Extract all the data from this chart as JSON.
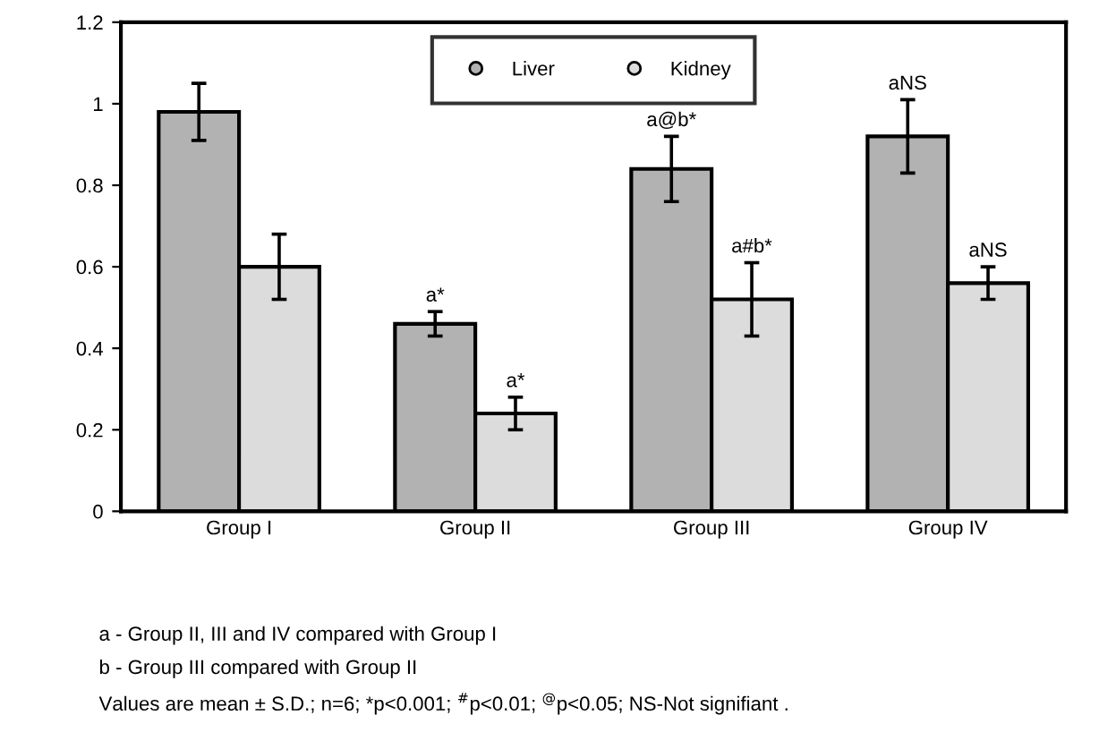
{
  "chart_data": {
    "type": "bar",
    "categories": [
      "Group I",
      "Group II",
      "Group III",
      "Group IV"
    ],
    "series": [
      {
        "name": "Liver",
        "color": "#b2b2b2",
        "values": [
          0.98,
          0.46,
          0.84,
          0.92
        ],
        "errors": [
          0.07,
          0.03,
          0.08,
          0.09
        ],
        "value_labels": [
          null,
          "a*",
          "a@b*",
          "aNS"
        ]
      },
      {
        "name": "Kidney",
        "color": "#dcdcdc",
        "values": [
          0.6,
          0.24,
          0.52,
          0.56
        ],
        "errors": [
          0.08,
          0.04,
          0.09,
          0.04
        ],
        "value_labels": [
          null,
          "a*",
          "a#b*",
          "aNS"
        ]
      }
    ],
    "ylim": [
      0,
      1.2
    ],
    "yticks": [
      0,
      0.2,
      0.4,
      0.6,
      0.8,
      1,
      1.2
    ],
    "grid": false,
    "legend": "top",
    "annotations": [
      "a - Group II, III and IV compared with Group I",
      "b - Group III compared with Group II",
      "Values are mean ± S.D.; n=6; *p<0.001; $^{#}$p<0.01; $^{@}$p<0.05; NS-Not signifiant ."
    ]
  }
}
